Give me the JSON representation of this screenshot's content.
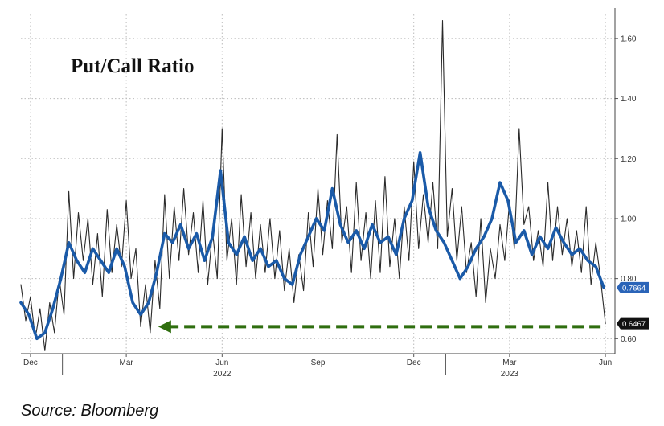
{
  "chart_data": {
    "type": "line",
    "title": "Put/Call Ratio",
    "source": "Source: Bloomberg",
    "ylim": [
      0.55,
      1.68
    ],
    "yticks": [
      "0.60",
      "0.80",
      "1.00",
      "1.20",
      "1.40",
      "1.60"
    ],
    "xticks": [
      {
        "label": "Dec",
        "x": 0
      },
      {
        "label": "Mar",
        "x": 3
      },
      {
        "label": "Jun",
        "x": 6
      },
      {
        "label": "Sep",
        "x": 9
      },
      {
        "label": "Dec",
        "x": 12
      },
      {
        "label": "Mar",
        "x": 15
      },
      {
        "label": "Jun",
        "x": 18
      }
    ],
    "year_labels": [
      {
        "label": "2022",
        "x": 6
      },
      {
        "label": "2023",
        "x": 15
      }
    ],
    "x_range": [
      -0.3,
      18.3
    ],
    "series": [
      {
        "color": "#2a2a2a",
        "last_value": "0.6467",
        "x": [
          -0.3,
          -0.15,
          0,
          0.15,
          0.3,
          0.45,
          0.6,
          0.75,
          0.9,
          1.05,
          1.2,
          1.35,
          1.5,
          1.65,
          1.8,
          1.95,
          2.1,
          2.25,
          2.4,
          2.55,
          2.7,
          2.85,
          3,
          3.15,
          3.3,
          3.45,
          3.6,
          3.75,
          3.9,
          4.05,
          4.2,
          4.35,
          4.5,
          4.65,
          4.8,
          4.95,
          5.1,
          5.25,
          5.4,
          5.55,
          5.7,
          5.85,
          6,
          6.15,
          6.3,
          6.45,
          6.6,
          6.75,
          6.9,
          7.05,
          7.2,
          7.35,
          7.5,
          7.65,
          7.8,
          7.95,
          8.1,
          8.25,
          8.4,
          8.55,
          8.7,
          8.85,
          9,
          9.15,
          9.3,
          9.45,
          9.6,
          9.75,
          9.9,
          10.05,
          10.2,
          10.35,
          10.5,
          10.65,
          10.8,
          10.95,
          11.1,
          11.25,
          11.4,
          11.55,
          11.7,
          11.85,
          12,
          12.15,
          12.3,
          12.45,
          12.6,
          12.75,
          12.9,
          13.05,
          13.2,
          13.35,
          13.5,
          13.65,
          13.8,
          13.95,
          14.1,
          14.25,
          14.4,
          14.55,
          14.7,
          14.85,
          15,
          15.15,
          15.3,
          15.45,
          15.6,
          15.75,
          15.9,
          16.05,
          16.2,
          16.35,
          16.5,
          16.65,
          16.8,
          16.95,
          17.1,
          17.25,
          17.4,
          17.55,
          17.7,
          17.85,
          18
        ],
        "y": [
          0.78,
          0.66,
          0.74,
          0.6,
          0.7,
          0.56,
          0.72,
          0.62,
          0.8,
          0.68,
          1.09,
          0.8,
          1.02,
          0.86,
          1.0,
          0.78,
          0.95,
          0.74,
          1.03,
          0.82,
          0.98,
          0.84,
          1.06,
          0.8,
          0.9,
          0.64,
          0.78,
          0.62,
          0.86,
          0.7,
          1.08,
          0.8,
          1.04,
          0.86,
          1.1,
          0.88,
          1.02,
          0.82,
          1.06,
          0.78,
          0.96,
          0.8,
          1.3,
          0.86,
          1.0,
          0.78,
          1.08,
          0.84,
          1.02,
          0.8,
          0.98,
          0.82,
          1.0,
          0.8,
          0.96,
          0.76,
          0.9,
          0.72,
          0.88,
          0.76,
          1.02,
          0.84,
          1.1,
          0.88,
          1.06,
          0.9,
          1.28,
          0.92,
          1.04,
          0.82,
          1.12,
          0.86,
          1.02,
          0.8,
          1.06,
          0.82,
          1.14,
          0.84,
          1.0,
          0.8,
          1.04,
          0.86,
          1.19,
          0.9,
          1.08,
          0.92,
          1.12,
          0.9,
          1.66,
          0.94,
          1.1,
          0.86,
          1.04,
          0.82,
          0.92,
          0.74,
          1.0,
          0.72,
          0.9,
          0.8,
          0.98,
          0.86,
          1.06,
          0.9,
          1.3,
          0.98,
          1.04,
          0.86,
          0.96,
          0.84,
          1.12,
          0.86,
          1.04,
          0.88,
          1.0,
          0.84,
          0.96,
          0.82,
          1.04,
          0.78,
          0.92,
          0.8,
          0.65
        ]
      },
      {
        "color": "#1a5aa8",
        "last_value": "0.7664",
        "x": [
          -0.3,
          -0.05,
          0.2,
          0.45,
          0.7,
          0.95,
          1.2,
          1.45,
          1.7,
          1.95,
          2.2,
          2.45,
          2.7,
          2.95,
          3.2,
          3.45,
          3.7,
          3.95,
          4.2,
          4.45,
          4.7,
          4.95,
          5.2,
          5.45,
          5.7,
          5.95,
          6.2,
          6.45,
          6.7,
          6.95,
          7.2,
          7.45,
          7.7,
          7.95,
          8.2,
          8.45,
          8.7,
          8.95,
          9.2,
          9.45,
          9.7,
          9.95,
          10.2,
          10.45,
          10.7,
          10.95,
          11.2,
          11.45,
          11.7,
          11.95,
          12.2,
          12.45,
          12.7,
          12.95,
          13.2,
          13.45,
          13.7,
          13.95,
          14.2,
          14.45,
          14.7,
          14.95,
          15.2,
          15.45,
          15.7,
          15.95,
          16.2,
          16.45,
          16.7,
          16.95,
          17.2,
          17.45,
          17.7,
          17.95
        ],
        "y": [
          0.72,
          0.68,
          0.6,
          0.62,
          0.7,
          0.8,
          0.92,
          0.86,
          0.82,
          0.9,
          0.86,
          0.82,
          0.9,
          0.84,
          0.72,
          0.68,
          0.72,
          0.82,
          0.95,
          0.92,
          0.98,
          0.9,
          0.95,
          0.86,
          0.94,
          1.16,
          0.92,
          0.88,
          0.94,
          0.86,
          0.9,
          0.84,
          0.86,
          0.8,
          0.78,
          0.88,
          0.94,
          1.0,
          0.96,
          1.1,
          0.98,
          0.92,
          0.96,
          0.9,
          0.98,
          0.92,
          0.94,
          0.88,
          1.0,
          1.06,
          1.22,
          1.04,
          0.96,
          0.92,
          0.86,
          0.8,
          0.84,
          0.9,
          0.94,
          1.0,
          1.12,
          1.06,
          0.92,
          0.96,
          0.88,
          0.94,
          0.9,
          0.97,
          0.92,
          0.88,
          0.9,
          0.86,
          0.84,
          0.77
        ]
      }
    ],
    "annotation": {
      "type": "dashed-arrow",
      "color": "#2f6e0f",
      "y": 0.64,
      "x_from": 17.85,
      "x_to": 4.0
    }
  }
}
